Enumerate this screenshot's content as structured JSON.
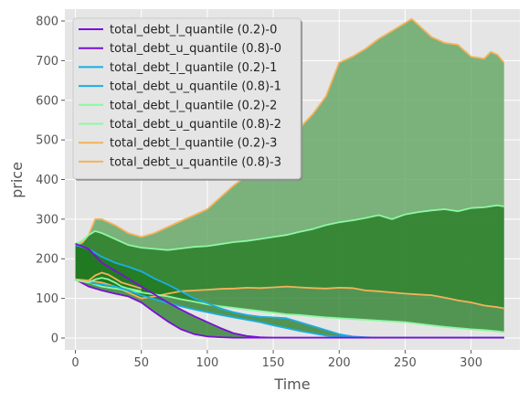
{
  "chart_data": {
    "type": "area",
    "title": "",
    "xlabel": "Time",
    "ylabel": "price",
    "xlim": [
      -8,
      337
    ],
    "ylim": [
      -30,
      830
    ],
    "x_ticks": [
      0,
      50,
      100,
      150,
      200,
      250,
      300
    ],
    "y_ticks": [
      0,
      100,
      200,
      300,
      400,
      500,
      600,
      700,
      800
    ],
    "grid": true,
    "legend_position": "top-left",
    "legend": [
      {
        "label": "total_debt_l_quantile (0.2)-0",
        "color": "#7b0fd6"
      },
      {
        "label": "total_debt_u_quantile (0.8)-0",
        "color": "#7b0fd6"
      },
      {
        "label": "total_debt_l_quantile (0.2)-1",
        "color": "#1aaee6"
      },
      {
        "label": "total_debt_u_quantile (0.8)-1",
        "color": "#1aaee6"
      },
      {
        "label": "total_debt_l_quantile (0.2)-2",
        "color": "#8ef7a2"
      },
      {
        "label": "total_debt_u_quantile (0.8)-2",
        "color": "#8ef7a2"
      },
      {
        "label": "total_debt_l_quantile (0.2)-3",
        "color": "#f5b25a"
      },
      {
        "label": "total_debt_u_quantile (0.8)-3",
        "color": "#f5b25a"
      }
    ],
    "bands": [
      {
        "group": 3,
        "fill": "#68a868",
        "line_color": "#f5b25a",
        "lower": {
          "x": [
            0,
            10,
            20,
            30,
            40,
            50,
            60,
            70,
            80,
            90,
            100,
            110,
            120,
            130,
            140,
            150,
            160,
            170,
            180,
            190,
            200,
            210,
            220,
            230,
            240,
            250,
            260,
            270,
            280,
            290,
            300,
            310,
            320,
            325
          ],
          "y": [
            148,
            145,
            140,
            130,
            115,
            100,
            105,
            112,
            118,
            120,
            122,
            124,
            125,
            127,
            126,
            128,
            130,
            128,
            126,
            125,
            127,
            126,
            120,
            118,
            115,
            112,
            110,
            108,
            102,
            95,
            90,
            82,
            78,
            75
          ]
        },
        "upper": {
          "x": [
            0,
            5,
            10,
            15,
            20,
            30,
            40,
            50,
            60,
            70,
            80,
            90,
            100,
            110,
            120,
            130,
            140,
            150,
            160,
            170,
            180,
            190,
            200,
            210,
            220,
            230,
            240,
            250,
            255,
            260,
            270,
            280,
            290,
            300,
            310,
            315,
            320,
            325
          ],
          "y": [
            235,
            240,
            260,
            300,
            300,
            285,
            265,
            255,
            265,
            280,
            295,
            310,
            325,
            355,
            385,
            410,
            445,
            470,
            495,
            530,
            565,
            610,
            695,
            710,
            730,
            755,
            775,
            795,
            805,
            790,
            760,
            745,
            740,
            710,
            705,
            722,
            715,
            695
          ]
        }
      },
      {
        "group": 2,
        "fill": "#207a20",
        "line_color": "#8ef7a2",
        "lower": {
          "x": [
            0,
            10,
            20,
            30,
            40,
            50,
            60,
            70,
            80,
            90,
            100,
            110,
            120,
            130,
            140,
            150,
            160,
            170,
            180,
            190,
            200,
            210,
            220,
            230,
            240,
            250,
            260,
            270,
            280,
            290,
            300,
            310,
            320,
            325
          ],
          "y": [
            148,
            140,
            130,
            125,
            120,
            115,
            110,
            105,
            98,
            92,
            85,
            80,
            76,
            72,
            68,
            64,
            60,
            58,
            55,
            52,
            50,
            48,
            46,
            44,
            42,
            40,
            36,
            32,
            28,
            25,
            22,
            20,
            17,
            15
          ]
        },
        "upper": {
          "x": [
            0,
            5,
            10,
            15,
            20,
            30,
            40,
            50,
            60,
            70,
            80,
            90,
            100,
            110,
            120,
            130,
            140,
            150,
            160,
            170,
            180,
            190,
            200,
            210,
            220,
            230,
            240,
            250,
            260,
            270,
            280,
            290,
            300,
            310,
            320,
            325
          ],
          "y": [
            238,
            245,
            260,
            270,
            265,
            250,
            235,
            228,
            225,
            222,
            226,
            230,
            232,
            237,
            242,
            245,
            250,
            255,
            260,
            268,
            275,
            285,
            292,
            297,
            303,
            310,
            300,
            312,
            318,
            322,
            325,
            320,
            328,
            330,
            335,
            332
          ]
        }
      },
      {
        "group": 1,
        "fill": "#207a20",
        "line_color": "#1aaee6",
        "lower": {
          "x": [
            0,
            10,
            20,
            30,
            40,
            50,
            60,
            70,
            80,
            90,
            100,
            110,
            120,
            130,
            140,
            150,
            160,
            170,
            180,
            190,
            200,
            210,
            220,
            230,
            240,
            250,
            260,
            270,
            280,
            290,
            300,
            310,
            320,
            325
          ],
          "y": [
            146,
            140,
            135,
            130,
            120,
            108,
            98,
            88,
            80,
            72,
            65,
            58,
            52,
            46,
            40,
            32,
            25,
            18,
            12,
            6,
            3,
            2,
            1,
            1,
            1,
            1,
            1,
            1,
            1,
            1,
            1,
            1,
            1,
            1
          ]
        },
        "upper": {
          "x": [
            0,
            10,
            20,
            30,
            40,
            50,
            60,
            70,
            80,
            90,
            100,
            110,
            120,
            130,
            140,
            150,
            160,
            170,
            180,
            190,
            200,
            210,
            220,
            230,
            240,
            250,
            260,
            270,
            280,
            290,
            300,
            310,
            320,
            325
          ],
          "y": [
            235,
            225,
            205,
            190,
            180,
            168,
            150,
            135,
            118,
            100,
            88,
            75,
            65,
            58,
            54,
            52,
            50,
            40,
            30,
            20,
            10,
            4,
            2,
            1,
            1,
            1,
            1,
            1,
            1,
            1,
            1,
            1,
            1,
            1
          ]
        }
      },
      {
        "group": 0,
        "fill": "#207a20",
        "line_color": "#7b0fd6",
        "lower": {
          "x": [
            0,
            10,
            20,
            30,
            40,
            50,
            60,
            70,
            80,
            90,
            100,
            110,
            120,
            130,
            140,
            150,
            160,
            170,
            180,
            190,
            200,
            210,
            220,
            230,
            240,
            250,
            260,
            270,
            280,
            290,
            300,
            310,
            320,
            325
          ],
          "y": [
            148,
            130,
            120,
            112,
            105,
            90,
            65,
            42,
            22,
            10,
            4,
            2,
            1,
            1,
            1,
            1,
            1,
            1,
            1,
            1,
            1,
            1,
            1,
            1,
            1,
            1,
            1,
            1,
            1,
            1,
            1,
            1,
            1,
            1
          ]
        },
        "upper": {
          "x": [
            0,
            10,
            20,
            30,
            40,
            50,
            60,
            70,
            80,
            90,
            100,
            110,
            120,
            130,
            140,
            150,
            160,
            170,
            180,
            190,
            200,
            210,
            220,
            230,
            240,
            250,
            260,
            270,
            280,
            290,
            300,
            310,
            320,
            325
          ],
          "y": [
            238,
            225,
            190,
            170,
            150,
            130,
            110,
            90,
            72,
            55,
            40,
            25,
            12,
            5,
            2,
            1,
            1,
            1,
            1,
            1,
            1,
            1,
            1,
            1,
            1,
            1,
            1,
            1,
            1,
            1,
            1,
            1,
            1,
            1
          ]
        }
      }
    ],
    "extra_lines": [
      {
        "color": "#f5b25a",
        "x": [
          0,
          10,
          15,
          20,
          25,
          30,
          35,
          40,
          50
        ],
        "y": [
          148,
          145,
          158,
          165,
          160,
          150,
          140,
          135,
          125
        ]
      },
      {
        "color": "#8ef7a2",
        "x": [
          0,
          10,
          15,
          20,
          25,
          30,
          35,
          40,
          50
        ],
        "y": [
          146,
          140,
          148,
          152,
          148,
          140,
          130,
          125,
          118
        ]
      }
    ]
  }
}
